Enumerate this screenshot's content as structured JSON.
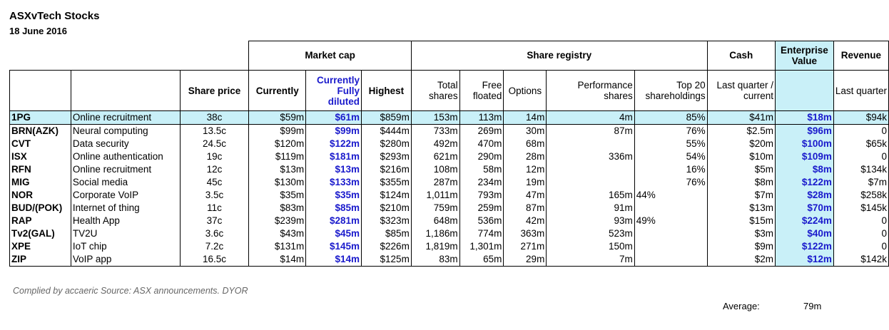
{
  "title": "ASXvTech Stocks",
  "date": "18 June 2016",
  "groups": {
    "market_cap": "Market cap",
    "share_registry": "Share registry",
    "cash": "Cash",
    "enterprise_value": "Enterprise Value",
    "revenue": "Revenue"
  },
  "columns": {
    "share_price": "Share price",
    "currently": "Currently",
    "fully_diluted": "Currently Fully diluted",
    "highest": "Highest",
    "total_shares": "Total shares",
    "free_floated": "Free floated",
    "options": "Options",
    "performance_shares": "Performance shares",
    "top20": "Top 20 shareholdings",
    "last_quarter_current": "Last quarter / current",
    "last_quarter": "Last quarter"
  },
  "rows": [
    {
      "code": "1PG",
      "name": "Online recruitment",
      "price": "38c",
      "currently": "$59m",
      "diluted": "$61m",
      "highest": "$859m",
      "total": "153m",
      "free": "113m",
      "options": "14m",
      "perf": "4m",
      "top20": "85%",
      "cash": "$41m",
      "ev": "$18m",
      "revenue": "$94k",
      "highlight": true
    },
    {
      "code": "BRN(AZK)",
      "name": "Neural computing",
      "price": "13.5c",
      "currently": "$99m",
      "diluted": "$99m",
      "highest": "$444m",
      "total": "733m",
      "free": "269m",
      "options": "30m",
      "perf": "87m",
      "top20": "76%",
      "cash": "$2.5m",
      "ev": "$96m",
      "revenue": "0"
    },
    {
      "code": "CVT",
      "name": "Data security",
      "price": "24.5c",
      "currently": "$120m",
      "diluted": "$122m",
      "highest": "$280m",
      "total": "492m",
      "free": "470m",
      "options": "68m",
      "perf": "",
      "top20": "55%",
      "cash": "$20m",
      "ev": "$100m",
      "revenue": "$65k"
    },
    {
      "code": "ISX",
      "name": "Online authentication",
      "price": "19c",
      "currently": "$119m",
      "diluted": "$181m",
      "highest": "$293m",
      "total": "621m",
      "free": "290m",
      "options": "28m",
      "perf": "336m",
      "top20": "54%",
      "cash": "$10m",
      "ev": "$109m",
      "revenue": "0"
    },
    {
      "code": "RFN",
      "name": "Online recruitment",
      "price": "12c",
      "currently": "$13m",
      "diluted": "$13m",
      "highest": "$216m",
      "total": "108m",
      "free": "58m",
      "options": "12m",
      "perf": "",
      "top20": "16%",
      "cash": "$5m",
      "ev": "$8m",
      "revenue": "$134k"
    },
    {
      "code": "MIG",
      "name": "Social media",
      "price": "45c",
      "currently": "$130m",
      "diluted": "$133m",
      "highest": "$355m",
      "total": "287m",
      "free": "234m",
      "options": "19m",
      "perf": "",
      "top20": "76%",
      "cash": "$8m",
      "ev": "$122m",
      "revenue": "$7m"
    },
    {
      "code": "NOR",
      "name": "Corporate VoIP",
      "price": "3.5c",
      "currently": "$35m",
      "diluted": "$35m",
      "highest": "$124m",
      "total": "1,011m",
      "free": "793m",
      "options": "47m",
      "perf": "165m",
      "top20": "44%",
      "cash": "$7m",
      "ev": "$28m",
      "revenue": "$258k",
      "top20_left": true
    },
    {
      "code": "BUD/(POK)",
      "name": "Internet of thing",
      "price": "11c",
      "currently": "$83m",
      "diluted": "$85m",
      "highest": "$210m",
      "total": "759m",
      "free": "259m",
      "options": "87m",
      "perf": "91m",
      "top20": "",
      "cash": "$13m",
      "ev": "$70m",
      "revenue": "$145k"
    },
    {
      "code": "RAP",
      "name": "Health App",
      "price": "37c",
      "currently": "$239m",
      "diluted": "$281m",
      "highest": "$323m",
      "total": "648m",
      "free": "536m",
      "options": "42m",
      "perf": "93m",
      "top20": "49%",
      "cash": "$15m",
      "ev": "$224m",
      "revenue": "0",
      "top20_left": true
    },
    {
      "code": "Tv2(GAL)",
      "name": "TV2U",
      "price": "3.6c",
      "currently": "$43m",
      "diluted": "$45m",
      "highest": "$85m",
      "total": "1,186m",
      "free": "774m",
      "options": "363m",
      "perf": "523m",
      "top20": "",
      "cash": "$3m",
      "ev": "$40m",
      "revenue": "0"
    },
    {
      "code": "XPE",
      "name": "IoT chip",
      "price": "7.2c",
      "currently": "$131m",
      "diluted": "$145m",
      "highest": "$226m",
      "total": "1,819m",
      "free": "1,301m",
      "options": "271m",
      "perf": "150m",
      "top20": "",
      "cash": "$9m",
      "ev": "$122m",
      "revenue": "0"
    },
    {
      "code": "ZIP",
      "name": "VoIP app",
      "price": "16.5c",
      "currently": "$14m",
      "diluted": "$14m",
      "highest": "$125m",
      "total": "83m",
      "free": "65m",
      "options": "29m",
      "perf": "7m",
      "top20": "",
      "cash": "$2m",
      "ev": "$12m",
      "revenue": "$142k"
    }
  ],
  "footer": "Complied by accaeric  Source: ASX announcements. DYOR",
  "average_label": "Average:",
  "average_value": "79m",
  "colors": {
    "highlight": "#c9f0f8",
    "blue_text": "#1a1acc"
  }
}
